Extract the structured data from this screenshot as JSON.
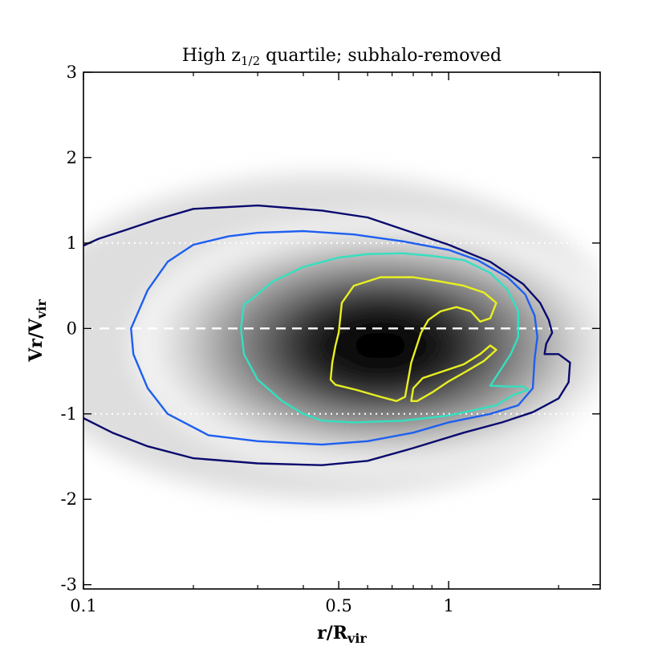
{
  "chart_data": {
    "type": "contour",
    "title_prefix": "High z",
    "title_subscript": "1/2",
    "title_suffix": " quartile; subhalo-removed",
    "xlabel_main": "r/R",
    "xlabel_sub": "vir",
    "ylabel_main": "Vr/V",
    "ylabel_sub": "vir",
    "x_scale": "log",
    "xlim": [
      0.1,
      2.6
    ],
    "ylim": [
      -3.05,
      3.0
    ],
    "x_ticks": [
      {
        "value": 0.1,
        "label": "0.1"
      },
      {
        "value": 0.5,
        "label": "0.5"
      },
      {
        "value": 1.0,
        "label": "1"
      }
    ],
    "x_minor_ticks": [
      0.2,
      0.3,
      0.4,
      0.6,
      0.7,
      0.8,
      0.9,
      2.0
    ],
    "y_ticks": [
      {
        "value": 3,
        "label": "3"
      },
      {
        "value": 2,
        "label": "2"
      },
      {
        "value": 1,
        "label": "1"
      },
      {
        "value": 0,
        "label": "0"
      },
      {
        "value": -1,
        "label": "-1"
      },
      {
        "value": -2,
        "label": "-2"
      },
      {
        "value": -3,
        "label": "-3"
      }
    ],
    "reference_lines": [
      {
        "name": "zero-velocity-line",
        "y": 0,
        "style": "dashed",
        "color": "#ffffff"
      },
      {
        "name": "upper-dotted-line",
        "y": 1,
        "style": "dotted",
        "color": "#ffffff"
      },
      {
        "name": "lower-dotted-line",
        "y": -1,
        "style": "dotted",
        "color": "#ffffff"
      }
    ],
    "density_peak": {
      "x": 0.65,
      "y": -0.2
    },
    "contours": [
      {
        "name": "outer-contour-navy",
        "color": "#0a0a6e",
        "closed": false,
        "points": [
          [
            0.1,
            0.97
          ],
          [
            0.11,
            1.05
          ],
          [
            0.13,
            1.15
          ],
          [
            0.16,
            1.28
          ],
          [
            0.2,
            1.4
          ],
          [
            0.3,
            1.44
          ],
          [
            0.45,
            1.38
          ],
          [
            0.6,
            1.3
          ],
          [
            0.8,
            1.12
          ],
          [
            1.0,
            0.98
          ],
          [
            1.3,
            0.78
          ],
          [
            1.6,
            0.52
          ],
          [
            1.78,
            0.3
          ],
          [
            1.88,
            0.1
          ],
          [
            1.92,
            -0.05
          ],
          [
            1.85,
            -0.18
          ],
          [
            1.83,
            -0.3
          ],
          [
            2.0,
            -0.3
          ],
          [
            2.15,
            -0.4
          ],
          [
            2.13,
            -0.63
          ],
          [
            2.0,
            -0.82
          ],
          [
            1.7,
            -0.98
          ],
          [
            1.4,
            -1.1
          ],
          [
            1.1,
            -1.22
          ],
          [
            0.8,
            -1.4
          ],
          [
            0.6,
            -1.55
          ],
          [
            0.45,
            -1.6
          ],
          [
            0.3,
            -1.58
          ],
          [
            0.2,
            -1.52
          ],
          [
            0.15,
            -1.38
          ],
          [
            0.12,
            -1.22
          ],
          [
            0.1,
            -1.05
          ]
        ]
      },
      {
        "name": "second-contour-blue",
        "color": "#1e5ff0",
        "closed": true,
        "points": [
          [
            0.135,
            0.0
          ],
          [
            0.15,
            0.45
          ],
          [
            0.17,
            0.78
          ],
          [
            0.2,
            0.98
          ],
          [
            0.25,
            1.08
          ],
          [
            0.3,
            1.12
          ],
          [
            0.4,
            1.14
          ],
          [
            0.55,
            1.1
          ],
          [
            0.75,
            1.02
          ],
          [
            1.0,
            0.92
          ],
          [
            1.2,
            0.8
          ],
          [
            1.45,
            0.6
          ],
          [
            1.62,
            0.4
          ],
          [
            1.72,
            0.15
          ],
          [
            1.75,
            -0.1
          ],
          [
            1.72,
            -0.35
          ],
          [
            1.7,
            -0.7
          ],
          [
            1.55,
            -0.9
          ],
          [
            1.3,
            -1.0
          ],
          [
            1.0,
            -1.1
          ],
          [
            0.8,
            -1.22
          ],
          [
            0.6,
            -1.32
          ],
          [
            0.45,
            -1.36
          ],
          [
            0.3,
            -1.32
          ],
          [
            0.22,
            -1.25
          ],
          [
            0.17,
            -1.0
          ],
          [
            0.15,
            -0.7
          ],
          [
            0.137,
            -0.3
          ]
        ]
      },
      {
        "name": "third-contour-teal",
        "color": "#33e0c0",
        "closed": true,
        "points": [
          [
            0.27,
            0.0
          ],
          [
            0.275,
            0.28
          ],
          [
            0.29,
            0.35
          ],
          [
            0.33,
            0.55
          ],
          [
            0.4,
            0.72
          ],
          [
            0.5,
            0.83
          ],
          [
            0.6,
            0.87
          ],
          [
            0.75,
            0.88
          ],
          [
            0.9,
            0.85
          ],
          [
            1.1,
            0.8
          ],
          [
            1.3,
            0.65
          ],
          [
            1.45,
            0.45
          ],
          [
            1.55,
            0.2
          ],
          [
            1.55,
            -0.1
          ],
          [
            1.48,
            -0.3
          ],
          [
            1.38,
            -0.5
          ],
          [
            1.3,
            -0.67
          ],
          [
            1.45,
            -0.68
          ],
          [
            1.6,
            -0.68
          ],
          [
            1.65,
            -0.72
          ],
          [
            1.5,
            -0.78
          ],
          [
            1.35,
            -0.9
          ],
          [
            1.0,
            -1.02
          ],
          [
            0.75,
            -1.08
          ],
          [
            0.55,
            -1.1
          ],
          [
            0.45,
            -1.08
          ],
          [
            0.4,
            -1.0
          ],
          [
            0.35,
            -0.85
          ],
          [
            0.3,
            -0.6
          ],
          [
            0.275,
            -0.3
          ]
        ]
      },
      {
        "name": "inner-contour-a-yellow",
        "color": "#e8f020",
        "closed": true,
        "points": [
          [
            0.5,
            -0.05
          ],
          [
            0.49,
            -0.2
          ],
          [
            0.48,
            -0.4
          ],
          [
            0.475,
            -0.6
          ],
          [
            0.49,
            -0.66
          ],
          [
            0.56,
            -0.72
          ],
          [
            0.65,
            -0.8
          ],
          [
            0.72,
            -0.85
          ],
          [
            0.76,
            -0.8
          ],
          [
            0.79,
            -0.4
          ],
          [
            0.84,
            -0.05
          ],
          [
            0.88,
            0.1
          ],
          [
            0.95,
            0.2
          ],
          [
            1.05,
            0.25
          ],
          [
            1.15,
            0.2
          ],
          [
            1.22,
            0.08
          ],
          [
            1.3,
            0.12
          ],
          [
            1.35,
            0.3
          ],
          [
            1.25,
            0.42
          ],
          [
            1.1,
            0.5
          ],
          [
            0.95,
            0.55
          ],
          [
            0.8,
            0.6
          ],
          [
            0.65,
            0.6
          ],
          [
            0.55,
            0.5
          ],
          [
            0.51,
            0.3
          ]
        ]
      },
      {
        "name": "inner-contour-b-yellow",
        "color": "#e8f020",
        "closed": true,
        "points": [
          [
            0.79,
            -0.85
          ],
          [
            0.8,
            -0.7
          ],
          [
            0.85,
            -0.58
          ],
          [
            1.0,
            -0.48
          ],
          [
            1.1,
            -0.42
          ],
          [
            1.22,
            -0.3
          ],
          [
            1.3,
            -0.2
          ],
          [
            1.35,
            -0.25
          ],
          [
            1.25,
            -0.38
          ],
          [
            1.12,
            -0.5
          ],
          [
            1.0,
            -0.62
          ],
          [
            0.9,
            -0.75
          ],
          [
            0.82,
            -0.85
          ]
        ]
      }
    ]
  }
}
